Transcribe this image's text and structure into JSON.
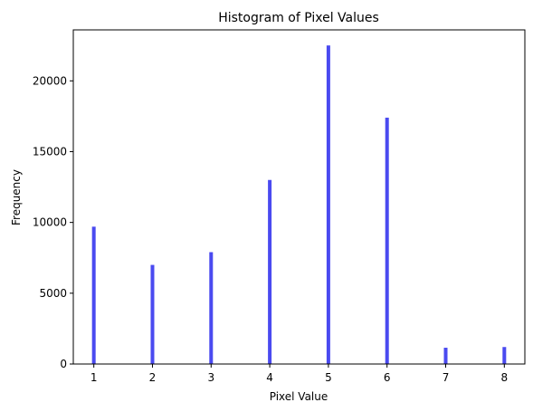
{
  "chart_data": {
    "type": "bar",
    "title": "Histogram of Pixel Values",
    "xlabel": "Pixel Value",
    "ylabel": "Frequency",
    "x": [
      1,
      2,
      3,
      4,
      5,
      6,
      7,
      8
    ],
    "values": [
      9700,
      7000,
      7900,
      13000,
      22500,
      17400,
      1150,
      1200
    ],
    "xlim": [
      0.65,
      8.35
    ],
    "ylim": [
      0,
      23600
    ],
    "xticks": [
      1,
      2,
      3,
      4,
      5,
      6,
      7,
      8
    ],
    "yticks": [
      0,
      5000,
      10000,
      15000,
      20000
    ],
    "bar_color": "#4a4af0",
    "grid": false
  }
}
